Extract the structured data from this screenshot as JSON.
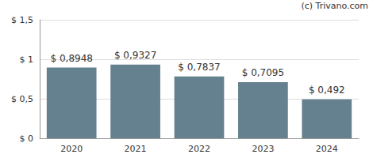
{
  "chart_data": {
    "type": "bar",
    "categories": [
      "2020",
      "2021",
      "2022",
      "2023",
      "2024"
    ],
    "values": [
      0.8948,
      0.9327,
      0.7837,
      0.7095,
      0.492
    ],
    "value_labels": [
      "$ 0,8948",
      "$ 0,9327",
      "$ 0,7837",
      "$ 0,7095",
      "$ 0,492"
    ],
    "data_labels": true,
    "color": "#65808f",
    "ylim": [
      0,
      1.5
    ],
    "yticks": [
      {
        "value": 0,
        "label": "$ 0"
      },
      {
        "value": 0.5,
        "label": "$ 0,5"
      },
      {
        "value": 1,
        "label": "$ 1"
      },
      {
        "value": 1.5,
        "label": "$ 1,5"
      }
    ],
    "grid": true,
    "annotations": [
      "(c) Trivano.com"
    ]
  }
}
